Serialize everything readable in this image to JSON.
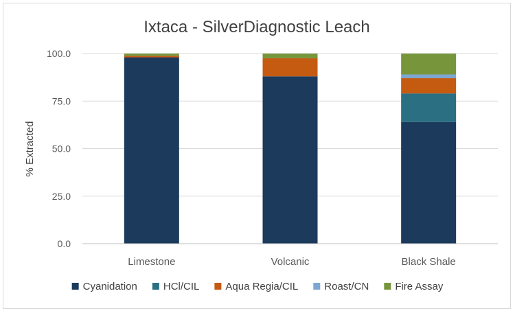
{
  "chart_data": {
    "type": "bar",
    "stacked": true,
    "title": "Ixtaca - SilverDiagnostic Leach",
    "xlabel": "",
    "ylabel": "% Extracted",
    "ylim": [
      0,
      100
    ],
    "yticks": [
      "0.0",
      "25.0",
      "50.0",
      "75.0",
      "100.0"
    ],
    "ytick_values": [
      0,
      25,
      50,
      75,
      100
    ],
    "grid": true,
    "legend_position": "bottom",
    "categories": [
      "Limestone",
      "Volcanic",
      "Black Shale"
    ],
    "series": [
      {
        "name": "Cyanidation",
        "color": "#1b3a5c",
        "values": [
          98.0,
          88.0,
          64.0
        ]
      },
      {
        "name": "HCl/CIL",
        "color": "#2a6f82",
        "values": [
          0.0,
          0.0,
          15.0
        ]
      },
      {
        "name": "Aqua Regia/CIL",
        "color": "#c55a11",
        "values": [
          0.8,
          9.5,
          8.0
        ]
      },
      {
        "name": "Roast/CN",
        "color": "#7ea6d2",
        "values": [
          0.0,
          0.0,
          2.0
        ]
      },
      {
        "name": "Fire Assay",
        "color": "#77963c",
        "values": [
          1.2,
          2.5,
          11.0
        ]
      }
    ]
  }
}
